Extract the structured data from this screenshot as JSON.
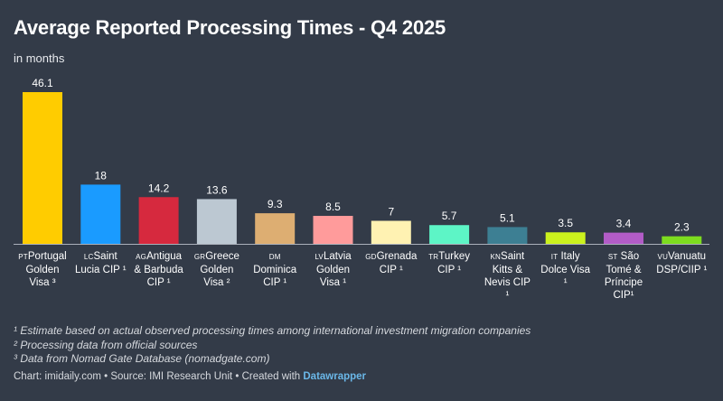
{
  "header": {
    "title": "Average Reported Processing Times - Q4 2025",
    "subtitle": "in months"
  },
  "colors": {
    "background": "#333b48",
    "baseline": "#aab0ba"
  },
  "chart_data": {
    "type": "bar",
    "title": "Average Reported Processing Times - Q4 2025",
    "subtitle": "in months",
    "xlabel": "",
    "ylabel": "in months",
    "ylim": [
      0,
      46.1
    ],
    "grid": false,
    "categories": [
      "Portugal Golden Visa ³",
      "Saint Lucia CIP ¹",
      "Antigua & Barbuda CIP ¹",
      "Greece Golden Visa ²",
      "Dominica CIP ¹",
      "Latvia Golden Visa ¹",
      "Grenada CIP ¹",
      "Turkey CIP ¹",
      "Saint Kitts & Nevis CIP ¹",
      "Italy Dolce Visa ¹",
      "São Tomé & Príncipe CIP¹",
      "Vanuatu DSP/CIIP ¹"
    ],
    "flags": [
      "PT",
      "LC",
      "AG",
      "GR",
      "DM",
      "LV",
      "GD",
      "TR",
      "KN",
      "IT",
      "ST",
      "VU"
    ],
    "label_lines": [
      [
        "Portugal",
        "Golden",
        "Visa ³"
      ],
      [
        "Saint",
        "Lucia CIP ¹"
      ],
      [
        "Antigua",
        "& Barbuda",
        "CIP ¹"
      ],
      [
        "Greece",
        "Golden",
        "Visa ²"
      ],
      [
        "",
        "Dominica",
        "CIP ¹"
      ],
      [
        "Latvia",
        "Golden",
        "Visa ¹"
      ],
      [
        "Grenada",
        "CIP ¹"
      ],
      [
        "Turkey",
        "CIP ¹"
      ],
      [
        "Saint",
        "Kitts &",
        "Nevis CIP",
        "¹"
      ],
      [
        " Italy",
        "Dolce Visa",
        "¹"
      ],
      [
        " São",
        "Tomé &",
        "Príncipe",
        "CIP¹"
      ],
      [
        "Vanuatu",
        "DSP/CIIP ¹"
      ]
    ],
    "values": [
      46.1,
      18,
      14.2,
      13.6,
      9.3,
      8.5,
      7,
      5.7,
      5.1,
      3.5,
      3.4,
      2.3
    ],
    "value_labels": [
      "46.1",
      "18",
      "14.2",
      "13.6",
      "9.3",
      "8.5",
      "7",
      "5.7",
      "5.1",
      "3.5",
      "3.4",
      "2.3"
    ],
    "bar_colors": [
      "#ffcc00",
      "#1a9bff",
      "#d6293e",
      "#bcc8d2",
      "#ddae72",
      "#ff9b9b",
      "#fff2b2",
      "#5df5c6",
      "#3d7f93",
      "#ccf21d",
      "#b25cc7",
      "#7ddc1f"
    ]
  },
  "footnotes": [
    "¹ Estimate based on actual observed processing times among international investment migration companies",
    "² Processing data from official sources",
    "³ Data from Nomad Gate Database (nomadgate.com)"
  ],
  "credit": {
    "text": "Chart: imidaily.com • Source: IMI Research Unit • Created with ",
    "brand": "Datawrapper"
  }
}
